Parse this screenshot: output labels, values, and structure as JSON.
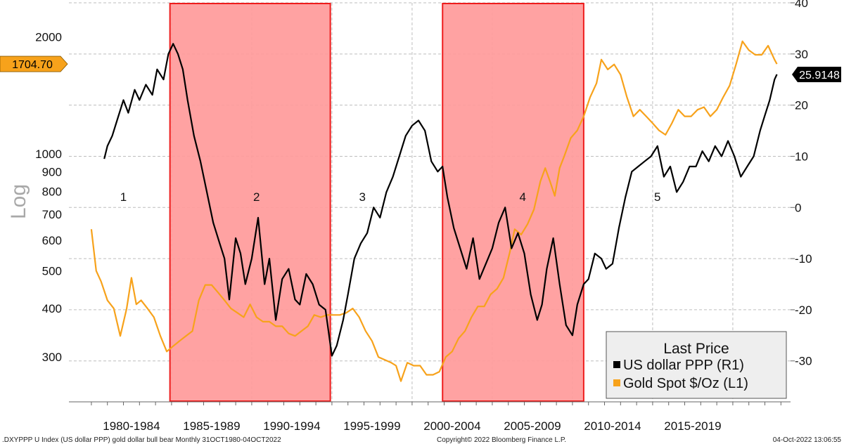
{
  "chart_data": {
    "type": "line",
    "ylabel": "Log",
    "x_tick_labels": [
      "1980-1984",
      "1985-1989",
      "1990-1994",
      "1995-1999",
      "2000-2004",
      "2005-2009",
      "2010-2014",
      "2015-2019"
    ],
    "left_axis": {
      "scale": "log",
      "ylim": [
        230,
        2450
      ],
      "tick_labels": [
        "2000",
        "1000",
        "900",
        "800",
        "700",
        "600",
        "500",
        "400",
        "300"
      ],
      "tick_values": [
        2000,
        1000,
        900,
        800,
        700,
        600,
        500,
        400,
        300
      ]
    },
    "right_axis": {
      "scale": "linear",
      "ylim": [
        -38,
        40
      ],
      "tick_values": [
        40,
        30,
        20,
        10,
        0,
        -10,
        -20,
        -30
      ],
      "tick_labels": [
        "40",
        "30",
        "20",
        "10",
        "0",
        "-10",
        "-20",
        "-30"
      ]
    },
    "series": [
      {
        "name": "US dollar PPP  (R1)",
        "axis": "right",
        "color": "#000000",
        "last_price": "25.9148",
        "x": [
          1980.8,
          1981.0,
          1981.3,
          1981.6,
          1982.0,
          1982.3,
          1982.7,
          1983.0,
          1983.4,
          1983.8,
          1984.1,
          1984.5,
          1984.8,
          1985.1,
          1985.4,
          1985.7,
          1986.0,
          1986.4,
          1986.8,
          1987.2,
          1987.6,
          1988.0,
          1988.3,
          1988.6,
          1989.0,
          1989.3,
          1989.6,
          1990.0,
          1990.4,
          1990.8,
          1991.1,
          1991.5,
          1991.9,
          1992.3,
          1992.7,
          1993.0,
          1993.4,
          1993.8,
          1994.2,
          1994.6,
          1995.0,
          1995.3,
          1995.7,
          1996.0,
          1996.4,
          1996.8,
          1997.2,
          1997.6,
          1998.0,
          1998.4,
          1998.8,
          1999.2,
          1999.6,
          2000.0,
          2000.4,
          2000.8,
          2001.2,
          2001.6,
          2001.9,
          2002.2,
          2002.6,
          2003.0,
          2003.4,
          2003.8,
          2004.2,
          2004.6,
          2005.0,
          2005.4,
          2005.8,
          2006.2,
          2006.6,
          2007.0,
          2007.4,
          2007.8,
          2008.1,
          2008.4,
          2008.8,
          2009.2,
          2009.6,
          2010.0,
          2010.3,
          2010.7,
          2011.0,
          2011.4,
          2011.8,
          2012.1,
          2012.5,
          2012.9,
          2013.3,
          2013.7,
          2014.1,
          2014.5,
          2014.9,
          2015.3,
          2015.7,
          2016.1,
          2016.5,
          2016.9,
          2017.3,
          2017.7,
          2018.1,
          2018.5,
          2018.9,
          2019.3,
          2019.7,
          2020.1,
          2020.5,
          2020.9,
          2021.3,
          2021.7,
          2022.0,
          2022.3,
          2022.6,
          2022.75
        ],
        "values": [
          9.5,
          12.0,
          14.0,
          17.0,
          21.0,
          18.5,
          23.0,
          21.0,
          24.0,
          22.0,
          27.0,
          25.0,
          30.0,
          32.0,
          30.0,
          27.0,
          21.0,
          14.0,
          9.0,
          3.0,
          -3.0,
          -7.0,
          -10.0,
          -18.0,
          -6.0,
          -9.0,
          -15.0,
          -10.0,
          -2.0,
          -15.0,
          -10.0,
          -22.0,
          -14.0,
          -12.0,
          -18.0,
          -19.0,
          -13.0,
          -15.0,
          -19.0,
          -20.0,
          -29.0,
          -27.0,
          -22.0,
          -17.0,
          -10.0,
          -7.0,
          -5.0,
          0.0,
          -2.0,
          3.0,
          6.0,
          10.0,
          14.0,
          16.0,
          17.0,
          15.0,
          9.0,
          7.0,
          8.0,
          2.0,
          -4.0,
          -8.0,
          -12.0,
          -6.0,
          -14.0,
          -11.0,
          -8.0,
          -3.0,
          0.0,
          -8.0,
          -5.0,
          -9.0,
          -17.0,
          -22.0,
          -19.0,
          -12.0,
          -6.0,
          -15.0,
          -23.0,
          -25.0,
          -19.0,
          -15.0,
          -14.0,
          -9.0,
          -10.0,
          -12.0,
          -11.0,
          -4.0,
          2.0,
          7.0,
          8.0,
          9.0,
          10.0,
          12.0,
          6.0,
          8.0,
          3.0,
          5.0,
          8.0,
          8.0,
          11.0,
          9.0,
          12.0,
          10.0,
          13.0,
          10.0,
          6.0,
          8.0,
          10.0,
          15.0,
          18.0,
          21.0,
          25.0,
          26.0
        ]
      },
      {
        "name": "Gold Spot $/Oz  (L1)",
        "axis": "left",
        "color": "#F7A21B",
        "last_price": "1704.70",
        "x": [
          1980.0,
          1980.3,
          1980.6,
          1981.0,
          1981.4,
          1981.8,
          1982.2,
          1982.5,
          1982.8,
          1983.1,
          1983.5,
          1983.9,
          1984.3,
          1984.7,
          1985.1,
          1985.5,
          1985.9,
          1986.3,
          1986.7,
          1987.1,
          1987.5,
          1987.9,
          1988.3,
          1988.7,
          1989.1,
          1989.5,
          1989.9,
          1990.3,
          1990.7,
          1991.1,
          1991.5,
          1991.9,
          1992.3,
          1992.7,
          1993.1,
          1993.5,
          1993.9,
          1994.3,
          1994.7,
          1995.1,
          1995.5,
          1995.9,
          1996.3,
          1996.7,
          1997.1,
          1997.5,
          1997.9,
          1998.3,
          1998.7,
          1999.0,
          1999.3,
          1999.7,
          2000.1,
          2000.5,
          2000.9,
          2001.3,
          2001.7,
          2002.1,
          2002.5,
          2002.9,
          2003.3,
          2003.7,
          2004.1,
          2004.5,
          2004.9,
          2005.3,
          2005.7,
          2006.1,
          2006.4,
          2006.8,
          2007.2,
          2007.6,
          2008.0,
          2008.3,
          2008.6,
          2008.9,
          2009.2,
          2009.5,
          2009.9,
          2010.3,
          2010.7,
          2011.1,
          2011.5,
          2011.8,
          2012.2,
          2012.6,
          2013.0,
          2013.4,
          2013.8,
          2014.2,
          2014.6,
          2015.0,
          2015.4,
          2015.8,
          2016.2,
          2016.6,
          2017.0,
          2017.4,
          2017.8,
          2018.2,
          2018.6,
          2019.0,
          2019.4,
          2019.8,
          2020.2,
          2020.6,
          2021.0,
          2021.4,
          2021.8,
          2022.2,
          2022.6,
          2022.75
        ],
        "values": [
          640,
          500,
          470,
          420,
          400,
          340,
          400,
          480,
          410,
          420,
          400,
          380,
          340,
          310,
          320,
          330,
          340,
          350,
          420,
          460,
          460,
          440,
          420,
          400,
          390,
          380,
          410,
          380,
          370,
          370,
          360,
          360,
          345,
          340,
          350,
          360,
          385,
          380,
          385,
          385,
          385,
          390,
          400,
          380,
          350,
          330,
          300,
          295,
          290,
          285,
          260,
          290,
          285,
          285,
          270,
          270,
          275,
          300,
          310,
          335,
          350,
          380,
          405,
          405,
          435,
          450,
          480,
          560,
          640,
          620,
          660,
          720,
          850,
          920,
          850,
          780,
          920,
          990,
          1100,
          1150,
          1250,
          1400,
          1520,
          1750,
          1650,
          1700,
          1600,
          1400,
          1250,
          1300,
          1250,
          1200,
          1150,
          1120,
          1200,
          1300,
          1250,
          1250,
          1300,
          1320,
          1250,
          1300,
          1400,
          1500,
          1700,
          1950,
          1850,
          1800,
          1800,
          1900,
          1750,
          1704.7
        ]
      }
    ],
    "phase_labels": [
      "1",
      "2",
      "3",
      "4",
      "5"
    ],
    "shaded_periods": [
      [
        1984.9,
        1994.9
      ],
      [
        2001.9,
        2010.7
      ]
    ],
    "legend": {
      "title": "Last Price",
      "position": "bottom-right"
    },
    "footer": {
      "left": ".DXYPPP U Index (US dollar PPP) gold dollar bull bear  Monthly 31OCT1980-04OCT2022",
      "center": "Copyright© 2022 Bloomberg Finance L.P.",
      "right": "04-Oct-2022 13:06:55"
    }
  }
}
